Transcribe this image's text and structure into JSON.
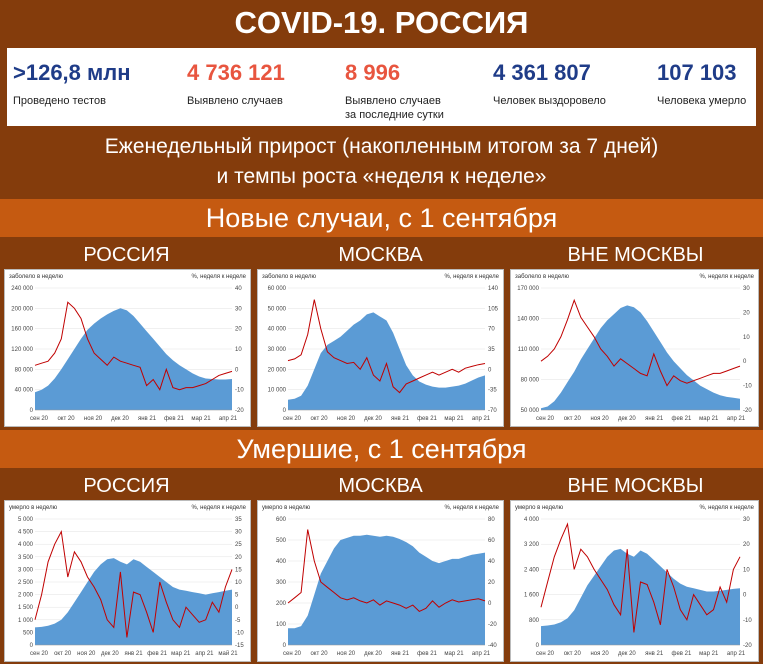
{
  "title": "COVID-19. РОССИЯ",
  "stats": [
    {
      "value": ">126,8 млн",
      "label": "Проведено тестов",
      "color": "#1f3c88"
    },
    {
      "value": "4 736 121",
      "label": "Выявлено случаев",
      "color": "#e8553f"
    },
    {
      "value": "8 996",
      "label": "Выявлено случаев за последние сутки",
      "color": "#e8553f"
    },
    {
      "value": "4 361 807",
      "label": "Человек выздоровело",
      "color": "#1f3c88"
    },
    {
      "value": "107 103",
      "label": "Человека умерло",
      "color": "#1f3c88"
    }
  ],
  "subtitle_line1": "Еженедельный прирост (накопленным итогом за 7 дней)",
  "subtitle_line2": "и темпы роста «неделя к неделе»",
  "section1": "Новые случаи, с 1 сентября",
  "section2": "Умершие, с 1 сентября",
  "regions": [
    "РОССИЯ",
    "МОСКВА",
    "ВНЕ МОСКВЫ"
  ],
  "colors": {
    "area": "#5b9bd5",
    "line": "#c00000",
    "dark": "#843c0c",
    "accent": "#c55a11"
  },
  "chart_data": [
    {
      "type": "area",
      "region": "РОССИЯ",
      "ylabel": "заболело в неделю",
      "y2label": "%, неделя к неделе",
      "ylim": [
        0,
        240000
      ],
      "yticks": [
        "0",
        "40 000",
        "80 000",
        "120 000",
        "160 000",
        "200 000",
        "240 000"
      ],
      "y2lim": [
        -20,
        40
      ],
      "y2ticks": [
        "-20",
        "-10",
        "0",
        "10",
        "20",
        "30",
        "40"
      ],
      "xticks": [
        "сен 20",
        "окт 20",
        "ноя 20",
        "дек 20",
        "янв 21",
        "фев 21",
        "мар 21",
        "апр 21"
      ],
      "series": [
        {
          "values": [
            35000,
            40000,
            48000,
            62000,
            80000,
            100000,
            120000,
            140000,
            158000,
            170000,
            180000,
            188000,
            195000,
            200000,
            196000,
            185000,
            170000,
            155000,
            140000,
            125000,
            110000,
            98000,
            88000,
            80000,
            72000,
            66000,
            62000,
            61000,
            60000,
            60000,
            61000
          ]
        },
        {
          "axis": "right",
          "values": [
            2,
            3,
            4,
            8,
            15,
            33,
            30,
            25,
            15,
            8,
            5,
            2,
            6,
            4,
            3,
            2,
            1,
            -8,
            -5,
            -10,
            0,
            -9,
            -10,
            -9,
            -9,
            -8,
            -7,
            -5,
            -3,
            -2,
            -1
          ]
        }
      ]
    },
    {
      "type": "area",
      "region": "МОСКВА",
      "ylabel": "заболело в неделю",
      "y2label": "%, неделя к неделе",
      "ylim": [
        0,
        60000
      ],
      "yticks": [
        "0",
        "10 000",
        "20 000",
        "30 000",
        "40 000",
        "50 000",
        "60 000"
      ],
      "y2lim": [
        -70,
        140
      ],
      "y2ticks": [
        "-70",
        "-35",
        "0",
        "35",
        "70",
        "105",
        "140"
      ],
      "xticks": [
        "сен 20",
        "окт 20",
        "ноя 20",
        "дек 20",
        "янв 21",
        "фев 21",
        "мар 21",
        "апр 21"
      ],
      "series": [
        {
          "values": [
            5000,
            5500,
            7000,
            12000,
            20000,
            28000,
            32000,
            34000,
            36000,
            39000,
            42000,
            44000,
            47000,
            48000,
            46000,
            44000,
            38000,
            30000,
            22000,
            17000,
            14000,
            12500,
            11500,
            11000,
            11000,
            11500,
            12000,
            13000,
            14500,
            16000,
            17000
          ]
        },
        {
          "axis": "right",
          "values": [
            15,
            18,
            25,
            60,
            120,
            70,
            30,
            20,
            15,
            10,
            12,
            0,
            20,
            -10,
            -20,
            10,
            -30,
            -40,
            -25,
            -20,
            -15,
            -10,
            -5,
            -10,
            -5,
            0,
            -5,
            2,
            5,
            8,
            10
          ]
        }
      ]
    },
    {
      "type": "area",
      "region": "ВНЕ МОСКВЫ",
      "ylabel": "заболело в неделю",
      "y2label": "%, неделя к неделе",
      "ylim": [
        30000,
        170000
      ],
      "yticks": [
        "50 000",
        "80 000",
        "110 000",
        "140 000",
        "170 000"
      ],
      "y2lim": [
        -20,
        30
      ],
      "y2ticks": [
        "-20",
        "-10",
        "0",
        "10",
        "20",
        "30"
      ],
      "xticks": [
        "сен 20",
        "окт 20",
        "ноя 20",
        "дек 20",
        "янв 21",
        "фев 21",
        "мар 21",
        "апр 21"
      ],
      "series": [
        {
          "values": [
            32000,
            34000,
            40000,
            50000,
            62000,
            74000,
            88000,
            100000,
            112000,
            124000,
            133000,
            140000,
            147000,
            150000,
            148000,
            142000,
            132000,
            120000,
            108000,
            96000,
            86000,
            78000,
            70000,
            64000,
            58000,
            54000,
            50000,
            47000,
            45000,
            44000,
            43000
          ]
        },
        {
          "axis": "right",
          "values": [
            0,
            2,
            5,
            10,
            17,
            25,
            18,
            14,
            10,
            5,
            2,
            -2,
            1,
            -1,
            -3,
            -5,
            -6,
            3,
            -4,
            -10,
            -6,
            -8,
            -9,
            -8,
            -7,
            -6,
            -5,
            -5,
            -4,
            -3,
            -2
          ]
        }
      ]
    },
    {
      "type": "area",
      "region": "РОССИЯ",
      "ylabel": "умерло в неделю",
      "y2label": "%, неделя к неделе",
      "ylim": [
        0,
        5000
      ],
      "yticks": [
        "0",
        "500",
        "1 000",
        "1 500",
        "2 000",
        "2 500",
        "3 000",
        "3 500",
        "4 000",
        "4 500",
        "5 000"
      ],
      "y2lim": [
        -15,
        35
      ],
      "y2ticks": [
        "-15",
        "-10",
        "-5",
        "0",
        "5",
        "10",
        "15",
        "20",
        "25",
        "30",
        "35"
      ],
      "xticks": [
        "сен 20",
        "окт 20",
        "ноя 20",
        "дек 20",
        "янв 21",
        "фев 21",
        "мар 21",
        "апр 21",
        "май 21"
      ],
      "series": [
        {
          "values": [
            700,
            720,
            760,
            850,
            1000,
            1300,
            1700,
            2100,
            2500,
            2900,
            3200,
            3400,
            3450,
            3300,
            3200,
            3400,
            3300,
            3100,
            2900,
            2700,
            2500,
            2300,
            2200,
            2150,
            2100,
            2050,
            2000,
            2050,
            2100,
            2150,
            2200
          ]
        },
        {
          "axis": "right",
          "values": [
            -5,
            5,
            18,
            25,
            30,
            12,
            22,
            18,
            12,
            8,
            3,
            -5,
            -8,
            14,
            -12,
            6,
            5,
            -2,
            -10,
            10,
            2,
            -5,
            -8,
            0,
            -3,
            -6,
            -5,
            2,
            -2,
            8,
            15
          ]
        }
      ]
    },
    {
      "type": "area",
      "region": "МОСКВА",
      "ylabel": "умерло в неделю",
      "y2label": "%, неделя к неделе",
      "ylim": [
        0,
        600
      ],
      "yticks": [
        "0",
        "100",
        "200",
        "300",
        "400",
        "500",
        "600"
      ],
      "y2lim": [
        -40,
        80
      ],
      "y2ticks": [
        "-40",
        "-20",
        "0",
        "20",
        "40",
        "60",
        "80"
      ],
      "xticks": [
        "сен 20",
        "окт 20",
        "ноя 20",
        "дек 20",
        "янв 21",
        "фев 21",
        "мар 21",
        "апр 21"
      ],
      "series": [
        {
          "values": [
            80,
            80,
            90,
            140,
            240,
            340,
            400,
            460,
            500,
            510,
            520,
            520,
            525,
            520,
            515,
            520,
            515,
            505,
            490,
            470,
            440,
            420,
            400,
            390,
            400,
            410,
            410,
            420,
            430,
            435,
            440
          ]
        },
        {
          "axis": "right",
          "values": [
            0,
            5,
            10,
            70,
            40,
            20,
            15,
            10,
            5,
            3,
            5,
            2,
            0,
            3,
            -2,
            2,
            0,
            -2,
            -5,
            -2,
            -8,
            -5,
            2,
            -4,
            0,
            3,
            1,
            2,
            3,
            4,
            2
          ]
        }
      ]
    },
    {
      "type": "area",
      "region": "ВНЕ МОСКВЫ",
      "ylabel": "умерло в неделю",
      "y2label": "%, неделя к неделе",
      "ylim": [
        0,
        4000
      ],
      "yticks": [
        "0",
        "800",
        "1 600",
        "2 400",
        "3 200",
        "4 000"
      ],
      "y2lim": [
        -20,
        30
      ],
      "y2ticks": [
        "-20",
        "-10",
        "0",
        "10",
        "20",
        "30"
      ],
      "xticks": [
        "сен 20",
        "окт 20",
        "ноя 20",
        "дек 20",
        "янв 21",
        "фев 21",
        "мар 21",
        "апр 21"
      ],
      "series": [
        {
          "values": [
            600,
            620,
            650,
            720,
            850,
            1100,
            1500,
            1900,
            2200,
            2500,
            2800,
            3000,
            3050,
            2900,
            2800,
            3000,
            2900,
            2700,
            2500,
            2300,
            2100,
            1950,
            1850,
            1800,
            1750,
            1700,
            1700,
            1720,
            1750,
            1780,
            1800
          ]
        },
        {
          "axis": "right",
          "values": [
            -5,
            5,
            15,
            22,
            28,
            10,
            18,
            15,
            10,
            6,
            2,
            -4,
            -8,
            18,
            -15,
            5,
            4,
            -3,
            -12,
            10,
            3,
            -6,
            -10,
            0,
            -4,
            -8,
            -6,
            3,
            -3,
            10,
            15
          ]
        }
      ]
    }
  ]
}
